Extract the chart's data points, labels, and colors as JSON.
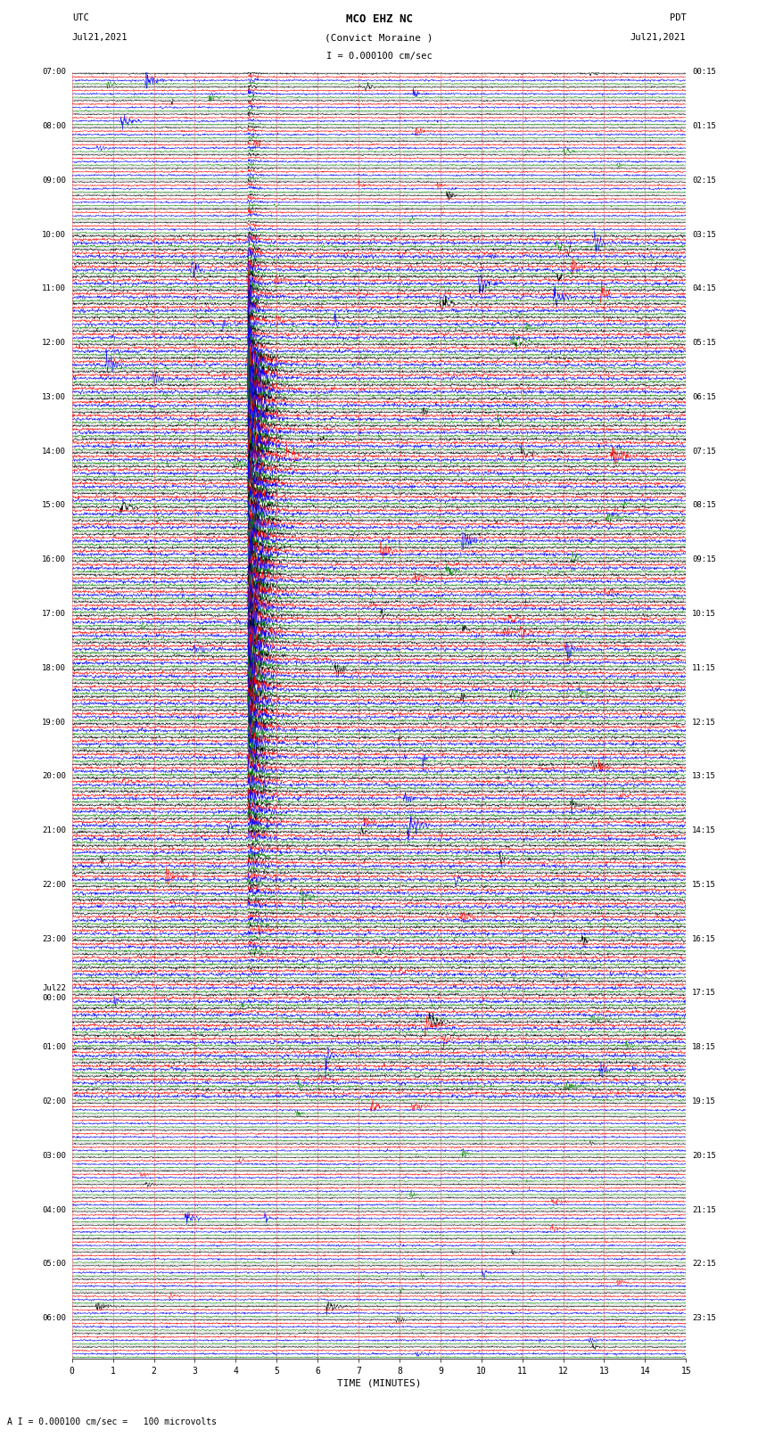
{
  "title_line1": "MCO EHZ NC",
  "title_line2": "(Convict Moraine )",
  "scale_label": "I = 0.000100 cm/sec",
  "footer_label": "A I = 0.000100 cm/sec =   100 microvolts",
  "xlabel": "TIME (MINUTES)",
  "bg_color": "#ffffff",
  "trace_colors": [
    "black",
    "red",
    "blue",
    "green"
  ],
  "left_times": [
    "07:00",
    "",
    "",
    "",
    "08:00",
    "",
    "",
    "",
    "09:00",
    "",
    "",
    "",
    "10:00",
    "",
    "",
    "",
    "11:00",
    "",
    "",
    "",
    "12:00",
    "",
    "",
    "",
    "13:00",
    "",
    "",
    "",
    "14:00",
    "",
    "",
    "",
    "15:00",
    "",
    "",
    "",
    "16:00",
    "",
    "",
    "",
    "17:00",
    "",
    "",
    "",
    "18:00",
    "",
    "",
    "",
    "19:00",
    "",
    "",
    "",
    "20:00",
    "",
    "",
    "",
    "21:00",
    "",
    "",
    "",
    "22:00",
    "",
    "",
    "",
    "23:00",
    "",
    "",
    "",
    "Jul22\n00:00",
    "",
    "",
    "",
    "01:00",
    "",
    "",
    "",
    "02:00",
    "",
    "",
    "",
    "03:00",
    "",
    "",
    "",
    "04:00",
    "",
    "",
    "",
    "05:00",
    "",
    "",
    "",
    "06:00",
    "",
    ""
  ],
  "right_times": [
    "00:15",
    "",
    "",
    "",
    "01:15",
    "",
    "",
    "",
    "02:15",
    "",
    "",
    "",
    "03:15",
    "",
    "",
    "",
    "04:15",
    "",
    "",
    "",
    "05:15",
    "",
    "",
    "",
    "06:15",
    "",
    "",
    "",
    "07:15",
    "",
    "",
    "",
    "08:15",
    "",
    "",
    "",
    "09:15",
    "",
    "",
    "",
    "10:15",
    "",
    "",
    "",
    "11:15",
    "",
    "",
    "",
    "12:15",
    "",
    "",
    "",
    "13:15",
    "",
    "",
    "",
    "14:15",
    "",
    "",
    "",
    "15:15",
    "",
    "",
    "",
    "16:15",
    "",
    "",
    "",
    "17:15",
    "",
    "",
    "",
    "18:15",
    "",
    "",
    "",
    "19:15",
    "",
    "",
    "",
    "20:15",
    "",
    "",
    "",
    "21:15",
    "",
    "",
    "",
    "22:15",
    "",
    "",
    "",
    "23:15",
    "",
    ""
  ],
  "num_rows": 95,
  "traces_per_row": 4,
  "x_min": 0,
  "x_max": 15,
  "x_ticks": [
    0,
    1,
    2,
    3,
    4,
    5,
    6,
    7,
    8,
    9,
    10,
    11,
    12,
    13,
    14,
    15
  ],
  "grid_color": "#aaaaaa",
  "fig_width": 8.5,
  "fig_height": 16.13,
  "dpi": 100
}
